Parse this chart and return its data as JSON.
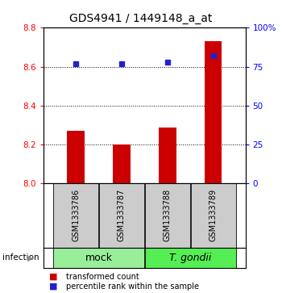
{
  "title": "GDS4941 / 1449148_a_at",
  "samples": [
    "GSM1333786",
    "GSM1333787",
    "GSM1333788",
    "GSM1333789"
  ],
  "bar_values": [
    8.27,
    8.2,
    8.285,
    8.73
  ],
  "percentile_values": [
    77,
    77,
    78,
    82
  ],
  "ylim_left": [
    8.0,
    8.8
  ],
  "ylim_right": [
    0,
    100
  ],
  "yticks_left": [
    8.0,
    8.2,
    8.4,
    8.6,
    8.8
  ],
  "yticks_right": [
    0,
    25,
    50,
    75,
    100
  ],
  "ytick_labels_right": [
    "0",
    "25",
    "50",
    "75",
    "100%"
  ],
  "bar_color": "#cc0000",
  "dot_color": "#2222cc",
  "bar_bottom": 8.0,
  "groups": [
    {
      "label": "mock",
      "samples": [
        0,
        1
      ],
      "color": "#99ee99"
    },
    {
      "label": "T. gondii",
      "samples": [
        2,
        3
      ],
      "color": "#55ee55"
    }
  ],
  "infection_label": "infection",
  "legend_bar_label": "transformed count",
  "legend_dot_label": "percentile rank within the sample",
  "title_fontsize": 10,
  "tick_fontsize": 7.5,
  "sample_label_fontsize": 7,
  "group_label_fontsize": 9
}
